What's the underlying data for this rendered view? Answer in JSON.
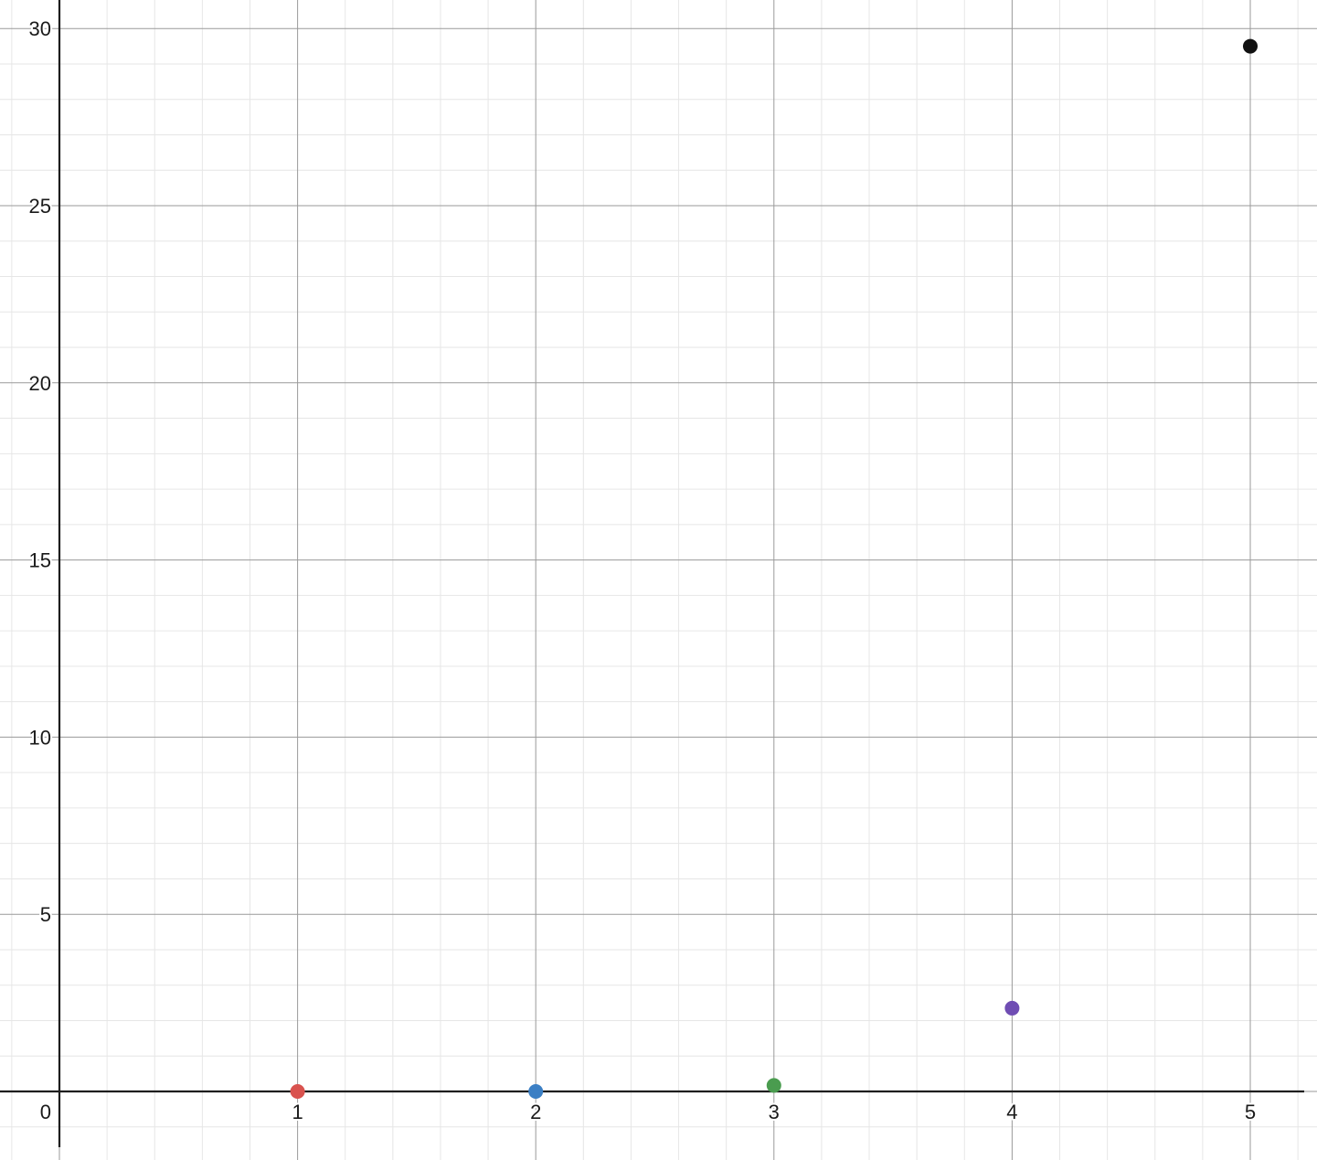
{
  "chart_data": {
    "type": "scatter",
    "title": "",
    "xlabel": "",
    "ylabel": "",
    "xlim": [
      -0.25,
      5.22
    ],
    "ylim": [
      -1.6,
      30.8
    ],
    "grid": true,
    "x_ticks": [
      "1",
      "2",
      "3",
      "4",
      "5"
    ],
    "y_ticks": [
      "5",
      "10",
      "15",
      "20",
      "25",
      "30"
    ],
    "origin_label": "0",
    "points": [
      {
        "x": 1,
        "y": 0.0,
        "color": "#d9534f"
      },
      {
        "x": 2,
        "y": 0.0,
        "color": "#3b7fc4"
      },
      {
        "x": 3,
        "y": 0.17,
        "color": "#4a9c4f"
      },
      {
        "x": 4,
        "y": 2.35,
        "color": "#6f4db3"
      },
      {
        "x": 5,
        "y": 29.5,
        "color": "#111111"
      }
    ]
  },
  "colors": {
    "minor_grid": "#e6e6e6",
    "major_grid": "#9a9a9a",
    "axis": "#1e1e1e"
  }
}
